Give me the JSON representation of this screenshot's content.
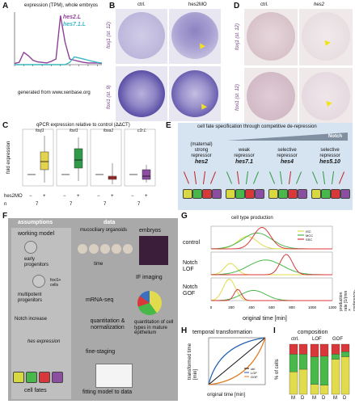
{
  "panel_letters": [
    "A",
    "B",
    "C",
    "D",
    "E",
    "F",
    "G",
    "H",
    "I"
  ],
  "panelA": {
    "title": "expression (TPM), whole embryos",
    "legend": [
      "hes2.L",
      "hes7.1.L"
    ],
    "xnote": "generated from www.xenbase.org",
    "colors": {
      "hes2": "#8e3f97",
      "hes7": "#3ab7c4"
    }
  },
  "panelB": {
    "col1": "ctrl.",
    "col2": "hes2MO",
    "row1": "foxj1 (st. 12)",
    "row2": "foxi1 (st. 9)"
  },
  "panelD": {
    "col1": "ctrl.",
    "col2": "hes2",
    "row1": "foxj1 (st. 12)",
    "row2": "foxi1 (st. 12)"
  },
  "panelC": {
    "title": "qPCR expression relative to control (ΔΔCT)",
    "ylabel": "fold expression",
    "genes": [
      "foxj1",
      "foxi1",
      "foxa1",
      "c1r.L"
    ],
    "row_label": "hes2MO",
    "minus": "−",
    "plus": "+",
    "n_label": "n",
    "ns": [
      "7",
      "7",
      "7",
      "7"
    ],
    "colors": [
      "#e4d34d",
      "#2f9a4a",
      "#c93a3a",
      "#8b4ea0"
    ]
  },
  "panelE": {
    "title": "cell fate specification through competitive de-repression",
    "notch": "Notch",
    "groups": [
      {
        "l1": "(maternal)",
        "l2": "strong",
        "l3": "repressor",
        "gene": "hes2"
      },
      {
        "l1": "",
        "l2": "weak",
        "l3": "repressor",
        "gene": "hes7.1"
      },
      {
        "l1": "",
        "l2": "selective",
        "l3": "repressor",
        "gene": "hes4"
      },
      {
        "l1": "",
        "l2": "selective",
        "l3": "repressor",
        "gene": "hes5.10"
      }
    ]
  },
  "panelF": {
    "col1_header": "assumptions",
    "col2_header": "data",
    "working_model": "working model",
    "early": "early progenitors",
    "multipotent": "multipotent progenitors",
    "notch_increase": "Notch increase",
    "hes_expr": "hes expression",
    "cell_fates": "cell fates",
    "foxi1": "foxi1+ cells",
    "organoids": "mucociliary organoids",
    "time": "time",
    "rnaseq": "mRNA-seq",
    "quant": "quantitation & normalization",
    "staging": "fine-staging",
    "fitting": "fitting model to data",
    "embryos": "embryos",
    "if": "IF imaging",
    "quant2": "quantitation of cell types in mature epithelium"
  },
  "panelG": {
    "title": "cell type production",
    "rows": [
      "control",
      "Notch LOF",
      "Notch GOF"
    ],
    "xlabel": "original time [min]",
    "ylabel": "production rate [1/(min × conference-area)]",
    "legend": [
      "ISC",
      "MCC",
      "SSC"
    ],
    "ticks": [
      "0",
      "200",
      "400",
      "600",
      "800",
      "1000",
      "1200"
    ],
    "colors": {
      "ISC": "#e2dc4c",
      "MCC": "#49b84a",
      "SSC": "#d8383a"
    }
  },
  "panelH": {
    "title": "temporal transformation",
    "xlabel": "original time [min]",
    "ylabel": "transformed time [min]",
    "legend": [
      "ctrl",
      "LOF",
      "GOF"
    ]
  },
  "panelI": {
    "title": "composition",
    "groups": [
      "ctrl.",
      "LOF",
      "GOF"
    ],
    "ylabel": "% of cells",
    "bars_label": [
      "M",
      "D",
      "M",
      "D",
      "M",
      "D"
    ]
  },
  "chart_data": [
    {
      "type": "line",
      "title": "expression (TPM), whole embryos",
      "series": [
        {
          "name": "hes2.L",
          "values": [
            2,
            4,
            22,
            16,
            8,
            5,
            4,
            3,
            6,
            10,
            88,
            40,
            10,
            8,
            6,
            4,
            3,
            3,
            3,
            2
          ]
        },
        {
          "name": "hes7.1.L",
          "values": [
            0,
            0,
            0,
            0,
            0,
            0,
            0,
            0,
            0,
            0,
            0,
            0,
            4,
            14,
            12,
            10,
            8,
            6,
            4,
            3
          ]
        }
      ]
    },
    {
      "type": "bar",
      "title": "composition",
      "categories": [
        "ctrl. M",
        "ctrl. D",
        "LOF M",
        "LOF D",
        "GOF M",
        "GOF D"
      ],
      "series": [
        {
          "name": "ISC",
          "values": [
            45,
            50,
            20,
            18,
            70,
            75
          ]
        },
        {
          "name": "MCC",
          "values": [
            35,
            30,
            55,
            58,
            10,
            10
          ]
        },
        {
          "name": "SSC",
          "values": [
            20,
            20,
            25,
            24,
            20,
            15
          ]
        }
      ],
      "ylim": [
        0,
        100
      ]
    }
  ]
}
